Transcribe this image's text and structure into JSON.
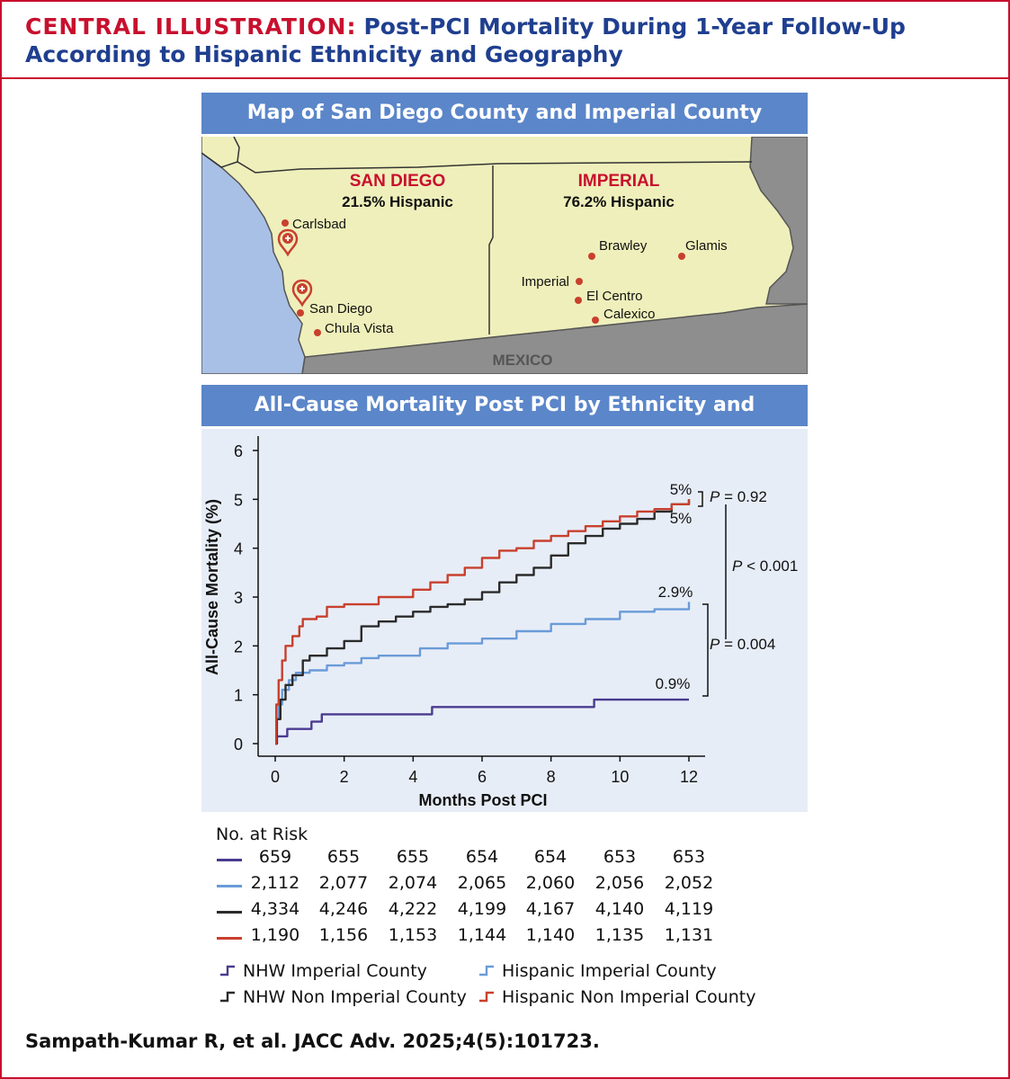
{
  "header": {
    "label": "CENTRAL ILLUSTRATION:",
    "title": "Post-PCI Mortality During 1-Year Follow-Up According to Hispanic Ethnicity and Geography"
  },
  "map": {
    "banner": "Map of San Diego County and Imperial County",
    "san_diego": {
      "name": "SAN DIEGO",
      "pct": "21.5% Hispanic"
    },
    "imperial": {
      "name": "IMPERIAL",
      "pct": "76.2% Hispanic"
    },
    "mexico": "MEXICO",
    "cities": {
      "carlsbad": "Carlsbad",
      "san_diego": "San Diego",
      "chula_vista": "Chula Vista",
      "brawley": "Brawley",
      "glamis": "Glamis",
      "imperial": "Imperial",
      "el_centro": "El Centro",
      "calexico": "Calexico"
    },
    "hospital_icon": "hospital-pin-icon",
    "colors": {
      "land": "#efefbb",
      "ocean": "#a9c0e6",
      "neighbor": "#8e8e8e",
      "accent": "#c8102e"
    }
  },
  "chart_banner": "All-Cause Mortality Post PCI by Ethnicity and Geography",
  "chart_data": {
    "type": "line",
    "xlabel": "Months Post PCI",
    "ylabel": "All-Cause Mortality (%)",
    "xlim": [
      0,
      12
    ],
    "ylim": [
      0,
      6
    ],
    "x_ticks": [
      "0",
      "2",
      "4",
      "6",
      "8",
      "10",
      "12"
    ],
    "y_ticks": [
      "0",
      "1",
      "2",
      "3",
      "4",
      "5",
      "6"
    ],
    "series": [
      {
        "name": "NHW Imperial County",
        "color": "#4a3b8f",
        "end_label": "0.9%",
        "points": [
          [
            0,
            0
          ],
          [
            0.05,
            0.15
          ],
          [
            0.3,
            0.15
          ],
          [
            0.35,
            0.3
          ],
          [
            1.0,
            0.3
          ],
          [
            1.05,
            0.45
          ],
          [
            1.3,
            0.45
          ],
          [
            1.35,
            0.6
          ],
          [
            4.5,
            0.6
          ],
          [
            4.55,
            0.75
          ],
          [
            9.2,
            0.75
          ],
          [
            9.25,
            0.9
          ],
          [
            12,
            0.9
          ]
        ]
      },
      {
        "name": "Hispanic Imperial County",
        "color": "#6a9bd8",
        "end_label": "2.9%",
        "points": [
          [
            0,
            0
          ],
          [
            0.03,
            0.5
          ],
          [
            0.1,
            0.8
          ],
          [
            0.2,
            1.1
          ],
          [
            0.4,
            1.3
          ],
          [
            0.6,
            1.45
          ],
          [
            1,
            1.5
          ],
          [
            1.5,
            1.6
          ],
          [
            2,
            1.65
          ],
          [
            2.5,
            1.75
          ],
          [
            3,
            1.8
          ],
          [
            3.5,
            1.8
          ],
          [
            4,
            1.8
          ],
          [
            4.2,
            1.95
          ],
          [
            5,
            2.05
          ],
          [
            6,
            2.15
          ],
          [
            7,
            2.3
          ],
          [
            8,
            2.45
          ],
          [
            9,
            2.55
          ],
          [
            10,
            2.7
          ],
          [
            11,
            2.75
          ],
          [
            12,
            2.9
          ]
        ]
      },
      {
        "name": "NHW Non Imperial County",
        "color": "#2b2b2b",
        "end_label": "5%",
        "points": [
          [
            0,
            0
          ],
          [
            0.05,
            0.5
          ],
          [
            0.15,
            0.9
          ],
          [
            0.3,
            1.2
          ],
          [
            0.5,
            1.4
          ],
          [
            0.8,
            1.7
          ],
          [
            1,
            1.8
          ],
          [
            1.5,
            1.95
          ],
          [
            2,
            2.1
          ],
          [
            2.5,
            2.4
          ],
          [
            3,
            2.5
          ],
          [
            3.5,
            2.6
          ],
          [
            4,
            2.7
          ],
          [
            4.5,
            2.8
          ],
          [
            5,
            2.85
          ],
          [
            5.5,
            2.95
          ],
          [
            6,
            3.1
          ],
          [
            6.5,
            3.3
          ],
          [
            7,
            3.45
          ],
          [
            7.5,
            3.6
          ],
          [
            8,
            3.85
          ],
          [
            8.5,
            4.1
          ],
          [
            9,
            4.25
          ],
          [
            9.5,
            4.4
          ],
          [
            10,
            4.5
          ],
          [
            10.5,
            4.6
          ],
          [
            11,
            4.75
          ],
          [
            11.5,
            4.9
          ],
          [
            12,
            5.0
          ]
        ]
      },
      {
        "name": "Hispanic Non Imperial County",
        "color": "#c8402e",
        "end_label": "5%",
        "points": [
          [
            0,
            0
          ],
          [
            0.03,
            0.8
          ],
          [
            0.1,
            1.3
          ],
          [
            0.2,
            1.7
          ],
          [
            0.3,
            2.0
          ],
          [
            0.5,
            2.2
          ],
          [
            0.7,
            2.4
          ],
          [
            0.8,
            2.55
          ],
          [
            1.2,
            2.6
          ],
          [
            1.5,
            2.8
          ],
          [
            2,
            2.85
          ],
          [
            3,
            3.0
          ],
          [
            4,
            3.15
          ],
          [
            4.5,
            3.3
          ],
          [
            5,
            3.45
          ],
          [
            5.5,
            3.6
          ],
          [
            6,
            3.8
          ],
          [
            6.5,
            3.95
          ],
          [
            7,
            4.0
          ],
          [
            7.5,
            4.15
          ],
          [
            8,
            4.25
          ],
          [
            8.5,
            4.35
          ],
          [
            9,
            4.45
          ],
          [
            9.5,
            4.55
          ],
          [
            10,
            4.65
          ],
          [
            10.5,
            4.75
          ],
          [
            11,
            4.8
          ],
          [
            11.5,
            4.9
          ],
          [
            12,
            5.0
          ]
        ]
      }
    ],
    "annotations": {
      "p1_value": "= 0.92",
      "p2_value": "< 0.001",
      "p3_value": "= 0.004",
      "p_letter": "P"
    }
  },
  "risk_table": {
    "title": "No. at Risk",
    "rows": [
      {
        "color": "#4a3b8f",
        "values": [
          "659",
          "655",
          "655",
          "654",
          "654",
          "653",
          "653"
        ]
      },
      {
        "color": "#6a9bd8",
        "values": [
          "2,112",
          "2,077",
          "2,074",
          "2,065",
          "2,060",
          "2,056",
          "2,052"
        ]
      },
      {
        "color": "#2b2b2b",
        "values": [
          "4,334",
          "4,246",
          "4,222",
          "4,199",
          "4,167",
          "4,140",
          "4,119"
        ]
      },
      {
        "color": "#c8402e",
        "values": [
          "1,190",
          "1,156",
          "1,153",
          "1,144",
          "1,140",
          "1,135",
          "1,131"
        ]
      }
    ]
  },
  "legend": [
    {
      "label": "NHW Imperial County",
      "color": "#4a3b8f"
    },
    {
      "label": "Hispanic Imperial County",
      "color": "#6a9bd8"
    },
    {
      "label": "NHW Non Imperial County",
      "color": "#2b2b2b"
    },
    {
      "label": "Hispanic Non Imperial County",
      "color": "#c8402e"
    }
  ],
  "citation": "Sampath-Kumar R, et al. JACC Adv. 2025;4(5):101723."
}
